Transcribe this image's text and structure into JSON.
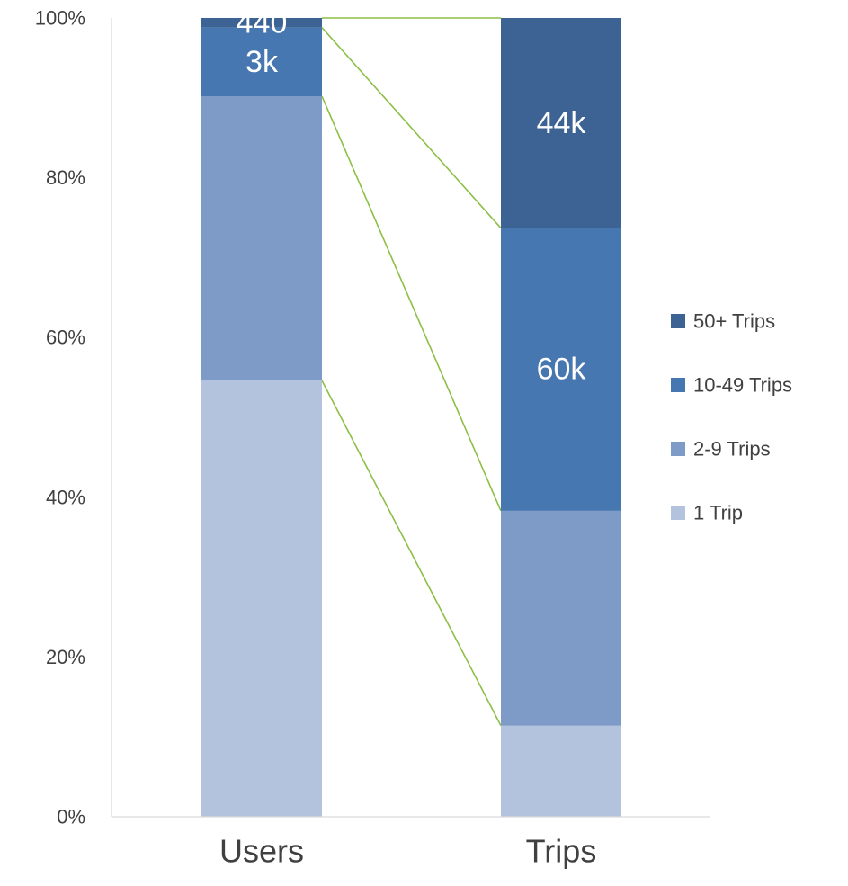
{
  "chart_data": {
    "type": "bar",
    "stacked": "percent",
    "categories": [
      "Users",
      "Trips"
    ],
    "series": [
      {
        "name": "1 Trip",
        "color": "#b4c3dd",
        "values": [
          54.6,
          11.4
        ]
      },
      {
        "name": "2-9 Trips",
        "color": "#7e9bc7",
        "values": [
          35.6,
          26.9
        ]
      },
      {
        "name": "10-49 Trips",
        "color": "#4777b0",
        "values": [
          8.6,
          35.4
        ]
      },
      {
        "name": "50+ Trips",
        "color": "#3d6394",
        "values": [
          1.2,
          26.3
        ]
      }
    ],
    "data_labels": [
      [
        "",
        "",
        "3k",
        "440"
      ],
      [
        "",
        "",
        "60k",
        "44k"
      ]
    ],
    "ylim": [
      0,
      100
    ],
    "yticks": [
      "0%",
      "20%",
      "40%",
      "60%",
      "80%",
      "100%"
    ],
    "series_lines": true,
    "series_line_color": "#8cbf45",
    "legend_position": "right",
    "grid": false,
    "title": "",
    "xlabel": "",
    "ylabel": ""
  }
}
